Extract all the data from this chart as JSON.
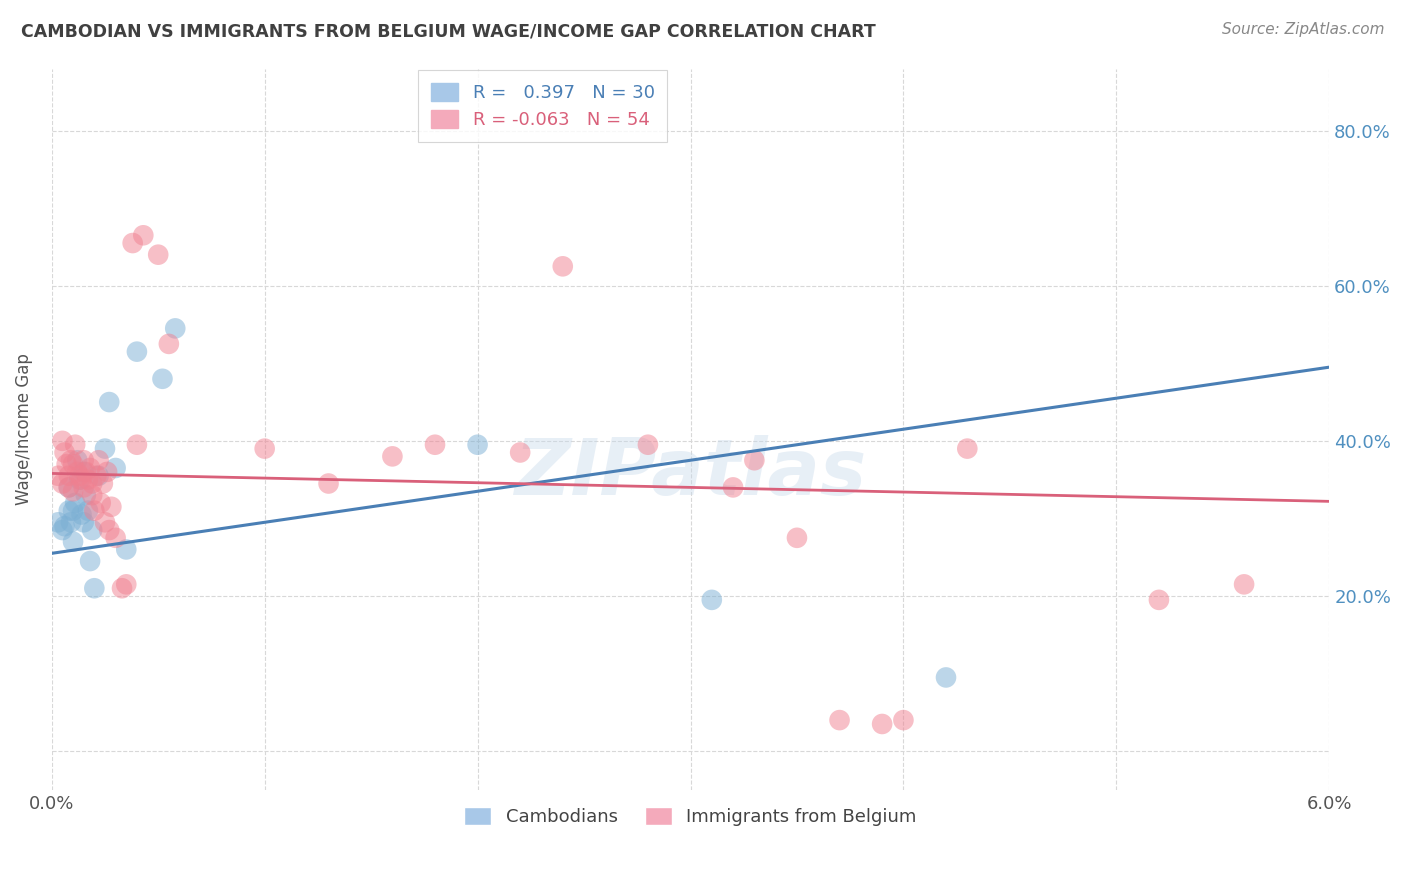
{
  "title": "CAMBODIAN VS IMMIGRANTS FROM BELGIUM WAGE/INCOME GAP CORRELATION CHART",
  "source": "Source: ZipAtlas.com",
  "ylabel": "Wage/Income Gap",
  "watermark": "ZIPatlas",
  "series1_label": "Cambodians",
  "series2_label": "Immigrants from Belgium",
  "series1_color": "#7bafd4",
  "series2_color": "#f08090",
  "series1_line_color": "#4a7fb5",
  "series2_line_color": "#d9607a",
  "xlim": [
    0.0,
    0.06
  ],
  "ylim": [
    -0.05,
    0.88
  ],
  "yticks": [
    0.0,
    0.2,
    0.4,
    0.6,
    0.8
  ],
  "ytick_labels": [
    "",
    "20.0%",
    "40.0%",
    "60.0%",
    "80.0%"
  ],
  "background_color": "#ffffff",
  "grid_color": "#d8d8d8",
  "title_color": "#404040",
  "right_axis_color": "#5090c0",
  "cambodian_x": [
    0.0003,
    0.0005,
    0.0006,
    0.0008,
    0.0008,
    0.0009,
    0.001,
    0.001,
    0.0011,
    0.0012,
    0.0013,
    0.0014,
    0.0015,
    0.0015,
    0.0016,
    0.0017,
    0.0018,
    0.0019,
    0.002,
    0.0022,
    0.0025,
    0.0027,
    0.003,
    0.0035,
    0.004,
    0.0052,
    0.0058,
    0.02,
    0.031,
    0.042
  ],
  "cambodian_y": [
    0.295,
    0.285,
    0.29,
    0.34,
    0.31,
    0.295,
    0.31,
    0.27,
    0.32,
    0.375,
    0.35,
    0.305,
    0.36,
    0.295,
    0.33,
    0.31,
    0.245,
    0.285,
    0.21,
    0.355,
    0.39,
    0.45,
    0.365,
    0.26,
    0.515,
    0.48,
    0.545,
    0.395,
    0.195,
    0.095
  ],
  "belgium_x": [
    0.0003,
    0.0005,
    0.0005,
    0.0006,
    0.0007,
    0.0008,
    0.0008,
    0.0009,
    0.001,
    0.001,
    0.0011,
    0.0012,
    0.0013,
    0.0014,
    0.0015,
    0.0015,
    0.0016,
    0.0017,
    0.0018,
    0.0019,
    0.0019,
    0.002,
    0.0021,
    0.0022,
    0.0023,
    0.0024,
    0.0025,
    0.0026,
    0.0027,
    0.0028,
    0.003,
    0.0033,
    0.0035,
    0.0038,
    0.004,
    0.0043,
    0.005,
    0.0055,
    0.01,
    0.013,
    0.016,
    0.018,
    0.022,
    0.024,
    0.028,
    0.032,
    0.033,
    0.035,
    0.037,
    0.039,
    0.04,
    0.043,
    0.052,
    0.056
  ],
  "belgium_y": [
    0.355,
    0.4,
    0.345,
    0.385,
    0.37,
    0.355,
    0.34,
    0.375,
    0.335,
    0.37,
    0.395,
    0.36,
    0.355,
    0.35,
    0.34,
    0.375,
    0.36,
    0.35,
    0.365,
    0.33,
    0.345,
    0.31,
    0.355,
    0.375,
    0.32,
    0.345,
    0.295,
    0.36,
    0.285,
    0.315,
    0.275,
    0.21,
    0.215,
    0.655,
    0.395,
    0.665,
    0.64,
    0.525,
    0.39,
    0.345,
    0.38,
    0.395,
    0.385,
    0.625,
    0.395,
    0.34,
    0.375,
    0.275,
    0.04,
    0.035,
    0.04,
    0.39,
    0.195,
    0.215
  ]
}
